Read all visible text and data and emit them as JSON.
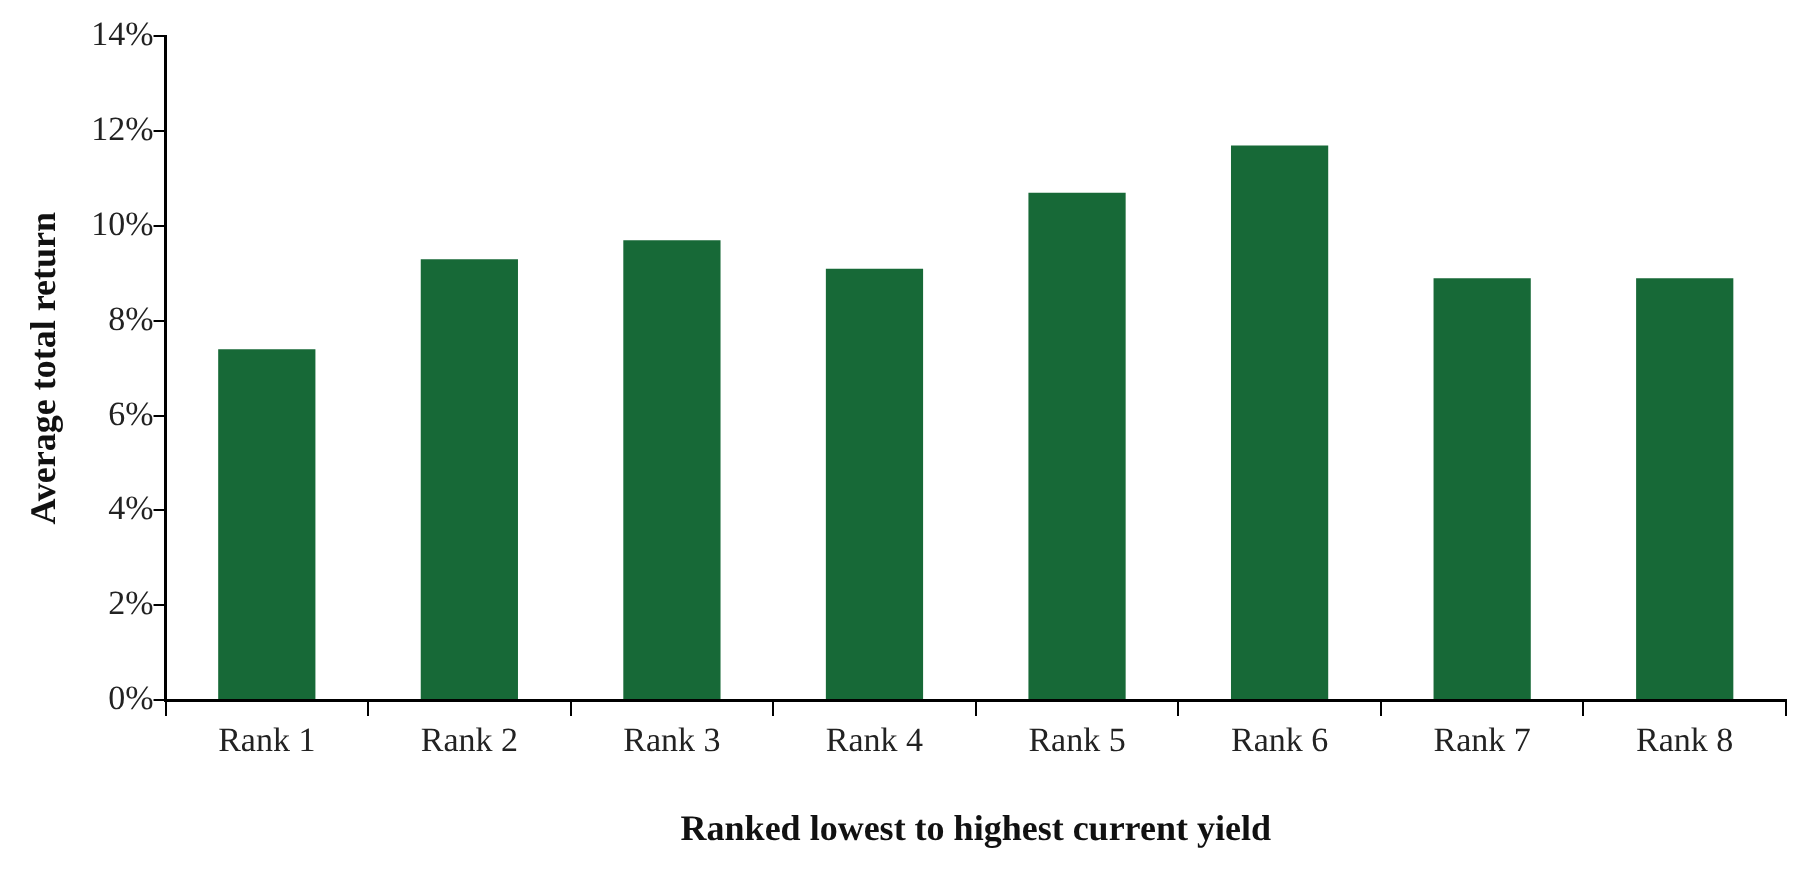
{
  "chart_data": {
    "type": "bar",
    "xlabel": "Ranked lowest to highest current yield",
    "ylabel": "Average total return",
    "categories": [
      "Rank 1",
      "Rank 2",
      "Rank 3",
      "Rank 4",
      "Rank 5",
      "Rank 6",
      "Rank 7",
      "Rank 8"
    ],
    "values": [
      7.4,
      9.3,
      9.7,
      9.1,
      10.7,
      11.7,
      8.9,
      8.9
    ],
    "color": "#176937",
    "ylim": [
      0,
      14
    ],
    "yticks": [
      {
        "value": 0,
        "label": "0%"
      },
      {
        "value": 2,
        "label": "2%"
      },
      {
        "value": 4,
        "label": "4%"
      },
      {
        "value": 6,
        "label": "6%"
      },
      {
        "value": 8,
        "label": "8%"
      },
      {
        "value": 10,
        "label": "10%"
      },
      {
        "value": 12,
        "label": "12%"
      },
      {
        "value": 14,
        "label": "14%"
      }
    ],
    "grid": false,
    "legend": false
  }
}
